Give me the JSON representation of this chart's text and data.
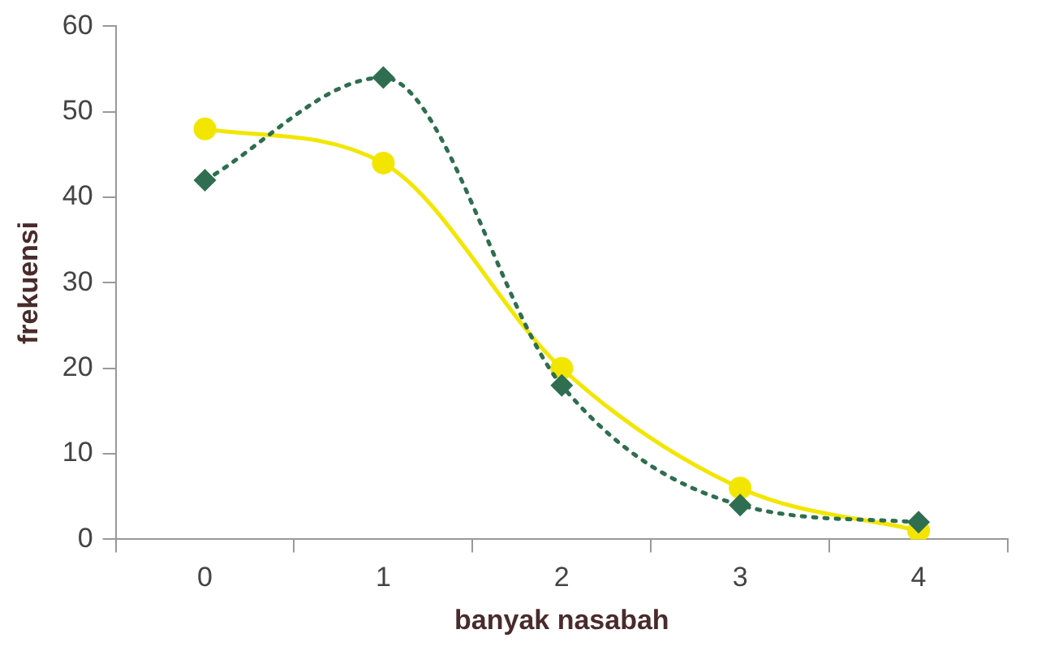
{
  "chart_data": {
    "type": "line",
    "xlabel": "banyak nasabah",
    "ylabel": "frekuensi",
    "categories": [
      "0",
      "1",
      "2",
      "3",
      "4"
    ],
    "series": [
      {
        "color": "#2f6e50",
        "marker": "diamond",
        "line_style": "dotted",
        "values": [
          42,
          54,
          18,
          4,
          2
        ]
      },
      {
        "color": "#f2e600",
        "marker": "circle",
        "line_style": "solid",
        "values": [
          48,
          44,
          20,
          6,
          1
        ]
      }
    ],
    "ylim": [
      0,
      60
    ],
    "yticks": [
      0,
      10,
      20,
      30,
      40,
      50,
      60
    ],
    "grid": false,
    "legend": false
  }
}
